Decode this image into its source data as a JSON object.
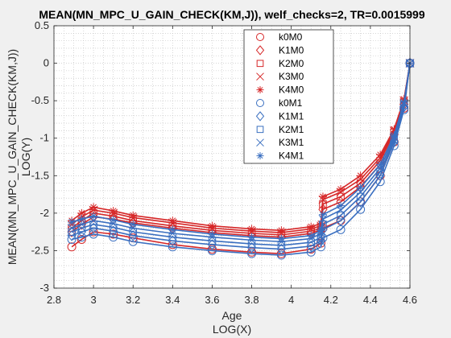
{
  "chart_data": {
    "type": "line",
    "title": "MEAN(MN_MPC_U_GAIN_CHECK(KM,J)), welf_checks=2, TR=0.0015999",
    "xlabel": [
      "Age",
      "LOG(X)"
    ],
    "ylabel": [
      "MEAN(MN_MPC_U_GAIN_CHECK(KM,J))",
      "LOG(Y)"
    ],
    "xlim": [
      2.8,
      4.6
    ],
    "ylim": [
      -3,
      0.5
    ],
    "x_ticks": [
      "2.8",
      "3",
      "3.2",
      "3.4",
      "3.6",
      "3.8",
      "4",
      "4.2",
      "4.4",
      "4.6"
    ],
    "y_ticks": [
      "-3",
      "-2.5",
      "-2",
      "-1.5",
      "-1",
      "-0.5",
      "0",
      "0.5"
    ],
    "grid": "minor dotted",
    "legend_position": "top-center",
    "colors": {
      "M0": "#d62728",
      "M1": "#3a6fc0"
    },
    "series": [
      {
        "name": "k0M0",
        "marker": "circle",
        "color": "#d62728",
        "x": [
          2.89,
          2.94,
          3.0,
          3.1,
          3.2,
          3.4,
          3.6,
          3.8,
          3.95,
          4.1,
          4.15,
          4.16,
          4.25,
          4.35,
          4.45,
          4.52,
          4.57,
          4.6
        ],
        "y": [
          -2.45,
          -2.35,
          -2.25,
          -2.28,
          -2.33,
          -2.42,
          -2.48,
          -2.52,
          -2.54,
          -2.48,
          -2.4,
          -2.2,
          -2.1,
          -1.85,
          -1.5,
          -1.05,
          -0.6,
          0.0
        ]
      },
      {
        "name": "K1M0",
        "marker": "diamond",
        "color": "#d62728",
        "x": [
          2.89,
          2.94,
          3.0,
          3.1,
          3.2,
          3.4,
          3.6,
          3.8,
          3.95,
          4.1,
          4.15,
          4.16,
          4.25,
          4.35,
          4.45,
          4.52,
          4.57,
          4.6
        ],
        "y": [
          -2.25,
          -2.15,
          -2.05,
          -2.08,
          -2.13,
          -2.2,
          -2.26,
          -2.3,
          -2.32,
          -2.27,
          -2.22,
          -1.95,
          -1.85,
          -1.65,
          -1.35,
          -0.95,
          -0.55,
          0.0
        ]
      },
      {
        "name": "K2M0",
        "marker": "square",
        "color": "#d62728",
        "x": [
          2.89,
          2.94,
          3.0,
          3.1,
          3.2,
          3.4,
          3.6,
          3.8,
          3.95,
          4.1,
          4.15,
          4.16,
          4.25,
          4.35,
          4.45,
          4.52,
          4.57,
          4.6
        ],
        "y": [
          -2.2,
          -2.1,
          -2.0,
          -2.04,
          -2.1,
          -2.17,
          -2.23,
          -2.27,
          -2.29,
          -2.24,
          -2.2,
          -1.88,
          -1.78,
          -1.6,
          -1.3,
          -0.92,
          -0.52,
          0.0
        ]
      },
      {
        "name": "K3M0",
        "marker": "x",
        "color": "#d62728",
        "x": [
          2.89,
          2.94,
          3.0,
          3.1,
          3.2,
          3.4,
          3.6,
          3.8,
          3.95,
          4.1,
          4.15,
          4.16,
          4.25,
          4.35,
          4.45,
          4.52,
          4.57,
          4.6
        ],
        "y": [
          -2.15,
          -2.05,
          -1.96,
          -2.0,
          -2.06,
          -2.13,
          -2.2,
          -2.24,
          -2.26,
          -2.21,
          -2.17,
          -1.82,
          -1.72,
          -1.55,
          -1.26,
          -0.9,
          -0.5,
          0.0
        ]
      },
      {
        "name": "K4M0",
        "marker": "asterisk",
        "color": "#d62728",
        "x": [
          2.89,
          2.94,
          3.0,
          3.1,
          3.2,
          3.4,
          3.6,
          3.8,
          3.95,
          4.1,
          4.15,
          4.16,
          4.25,
          4.35,
          4.45,
          4.52,
          4.57,
          4.6
        ],
        "y": [
          -2.1,
          -2.0,
          -1.92,
          -1.97,
          -2.03,
          -2.1,
          -2.17,
          -2.21,
          -2.23,
          -2.18,
          -2.14,
          -1.78,
          -1.68,
          -1.5,
          -1.22,
          -0.88,
          -0.48,
          0.0
        ]
      },
      {
        "name": "k0M1",
        "marker": "circle",
        "color": "#3a6fc0",
        "x": [
          2.89,
          2.94,
          3.0,
          3.1,
          3.2,
          3.4,
          3.6,
          3.8,
          3.95,
          4.1,
          4.15,
          4.16,
          4.25,
          4.35,
          4.45,
          4.52,
          4.57,
          4.6
        ],
        "y": [
          -2.35,
          -2.32,
          -2.28,
          -2.32,
          -2.38,
          -2.45,
          -2.5,
          -2.54,
          -2.56,
          -2.52,
          -2.45,
          -2.33,
          -2.22,
          -1.95,
          -1.58,
          -1.1,
          -0.62,
          0.0
        ]
      },
      {
        "name": "K1M1",
        "marker": "diamond",
        "color": "#3a6fc0",
        "x": [
          2.89,
          2.94,
          3.0,
          3.1,
          3.2,
          3.4,
          3.6,
          3.8,
          3.95,
          4.1,
          4.15,
          4.16,
          4.25,
          4.35,
          4.45,
          4.52,
          4.57,
          4.6
        ],
        "y": [
          -2.3,
          -2.25,
          -2.2,
          -2.24,
          -2.3,
          -2.37,
          -2.42,
          -2.46,
          -2.48,
          -2.44,
          -2.37,
          -2.22,
          -2.1,
          -1.85,
          -1.5,
          -1.05,
          -0.58,
          0.0
        ]
      },
      {
        "name": "K2M1",
        "marker": "square",
        "color": "#3a6fc0",
        "x": [
          2.89,
          2.94,
          3.0,
          3.1,
          3.2,
          3.4,
          3.6,
          3.8,
          3.95,
          4.1,
          4.15,
          4.16,
          4.25,
          4.35,
          4.45,
          4.52,
          4.57,
          4.6
        ],
        "y": [
          -2.25,
          -2.2,
          -2.15,
          -2.19,
          -2.25,
          -2.32,
          -2.37,
          -2.41,
          -2.43,
          -2.39,
          -2.32,
          -2.15,
          -2.03,
          -1.78,
          -1.45,
          -1.02,
          -0.56,
          0.0
        ]
      },
      {
        "name": "K3M1",
        "marker": "x",
        "color": "#3a6fc0",
        "x": [
          2.89,
          2.94,
          3.0,
          3.1,
          3.2,
          3.4,
          3.6,
          3.8,
          3.95,
          4.1,
          4.15,
          4.16,
          4.25,
          4.35,
          4.45,
          4.52,
          4.57,
          4.6
        ],
        "y": [
          -2.2,
          -2.15,
          -2.1,
          -2.14,
          -2.2,
          -2.27,
          -2.32,
          -2.36,
          -2.38,
          -2.34,
          -2.27,
          -2.08,
          -1.96,
          -1.72,
          -1.4,
          -0.99,
          -0.54,
          0.0
        ]
      },
      {
        "name": "K4M1",
        "marker": "asterisk",
        "color": "#3a6fc0",
        "x": [
          2.89,
          2.94,
          3.0,
          3.1,
          3.2,
          3.4,
          3.6,
          3.8,
          3.95,
          4.1,
          4.15,
          4.16,
          4.25,
          4.35,
          4.45,
          4.52,
          4.57,
          4.6
        ],
        "y": [
          -2.12,
          -2.08,
          -2.04,
          -2.09,
          -2.15,
          -2.22,
          -2.28,
          -2.32,
          -2.34,
          -2.3,
          -2.23,
          -2.02,
          -1.9,
          -1.66,
          -1.35,
          -0.96,
          -0.52,
          0.0
        ]
      }
    ]
  }
}
